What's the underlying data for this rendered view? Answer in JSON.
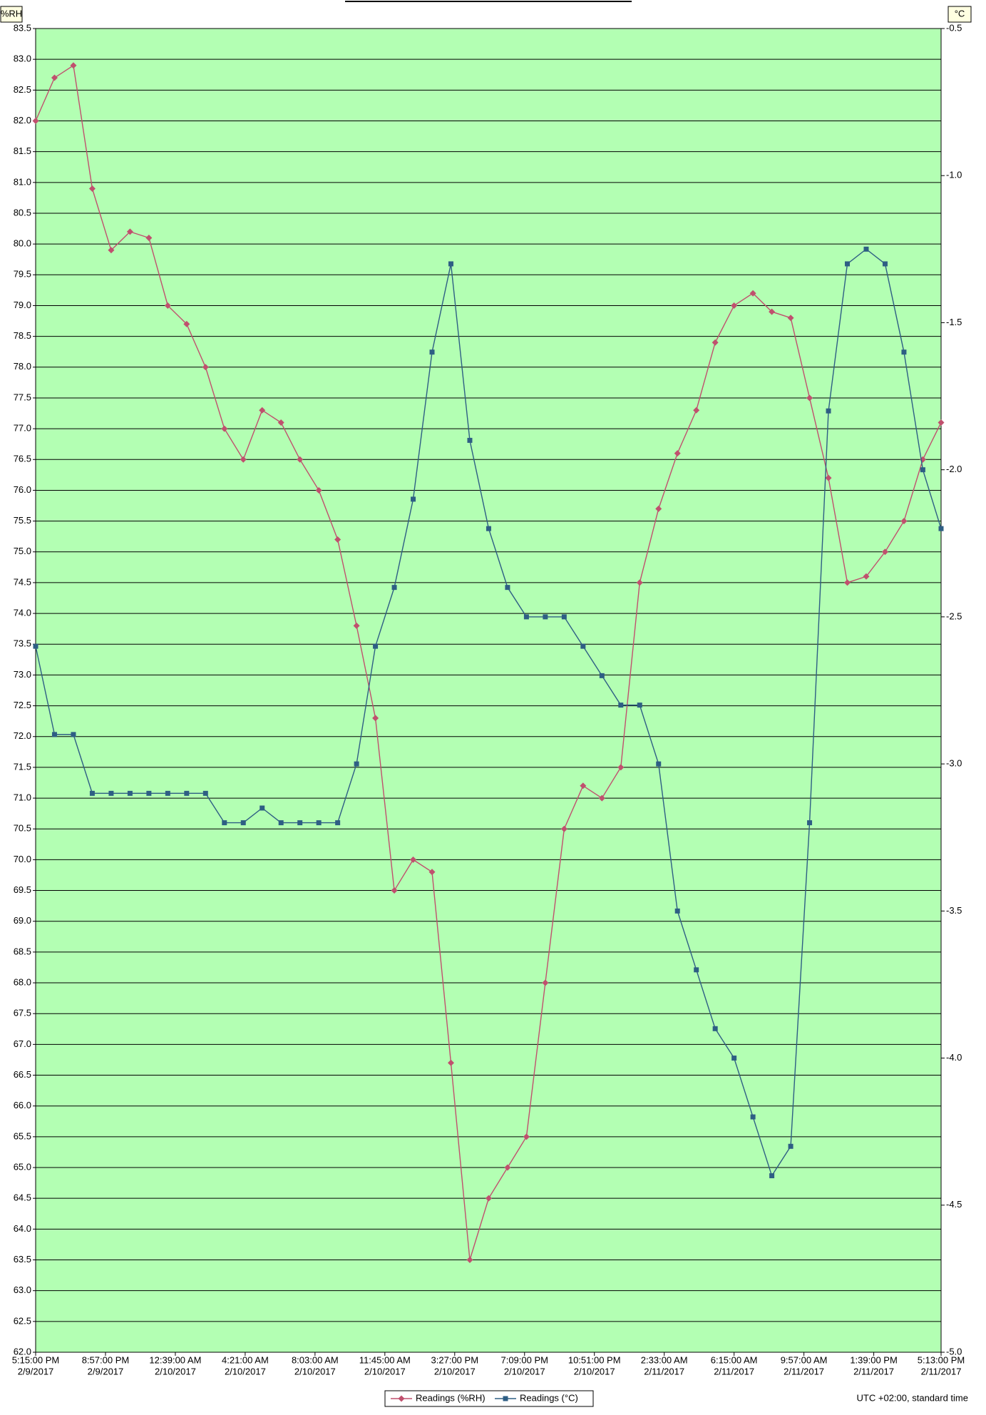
{
  "chart_data": {
    "type": "line",
    "y_label": "%RH",
    "y2_label": "°C",
    "footnote": "UTC +02:00, standard time",
    "grid": true,
    "background": "#b3ffb3",
    "x": [
      "2017-02-09T17:15",
      "2017-02-09T18:15",
      "2017-02-09T19:15",
      "2017-02-09T20:15",
      "2017-02-09T21:15",
      "2017-02-09T22:15",
      "2017-02-09T23:15",
      "2017-02-10T00:15",
      "2017-02-10T01:15",
      "2017-02-10T02:15",
      "2017-02-10T03:15",
      "2017-02-10T04:15",
      "2017-02-10T05:15",
      "2017-02-10T06:15",
      "2017-02-10T07:15",
      "2017-02-10T08:15",
      "2017-02-10T09:15",
      "2017-02-10T10:15",
      "2017-02-10T11:15",
      "2017-02-10T12:15",
      "2017-02-10T13:15",
      "2017-02-10T14:15",
      "2017-02-10T15:15",
      "2017-02-10T16:15",
      "2017-02-10T17:15",
      "2017-02-10T18:15",
      "2017-02-10T19:15",
      "2017-02-10T20:15",
      "2017-02-10T21:15",
      "2017-02-10T22:15",
      "2017-02-10T23:15",
      "2017-02-11T00:15",
      "2017-02-11T01:15",
      "2017-02-11T02:15",
      "2017-02-11T03:15",
      "2017-02-11T04:15",
      "2017-02-11T05:15",
      "2017-02-11T06:15",
      "2017-02-11T07:15",
      "2017-02-11T08:15",
      "2017-02-11T09:15",
      "2017-02-11T10:15",
      "2017-02-11T11:15",
      "2017-02-11T12:15",
      "2017-02-11T13:15",
      "2017-02-11T14:15",
      "2017-02-11T15:15",
      "2017-02-11T16:15",
      "2017-02-11T17:13"
    ],
    "series": [
      {
        "name": "Readings (%RH)",
        "color": "#c0506e",
        "marker": "diamond",
        "axis": "y",
        "values": [
          82.0,
          82.7,
          82.9,
          80.9,
          79.9,
          80.2,
          80.1,
          79.0,
          78.7,
          78.0,
          77.0,
          76.5,
          77.3,
          77.1,
          76.5,
          76.0,
          75.2,
          73.8,
          72.3,
          69.5,
          70.0,
          69.8,
          66.7,
          63.5,
          64.5,
          65.0,
          65.5,
          68.0,
          70.5,
          71.2,
          71.0,
          71.5,
          74.5,
          75.7,
          76.6,
          77.3,
          78.4,
          79.0,
          79.2,
          78.9,
          78.8,
          77.5,
          76.2,
          74.5,
          74.6,
          75.0,
          75.5,
          76.5,
          77.1
        ]
      },
      {
        "name": "Readings (°C)",
        "color": "#2e5e84",
        "marker": "square",
        "axis": "y2",
        "values": [
          -2.6,
          -2.9,
          -2.9,
          -3.1,
          -3.1,
          -3.1,
          -3.1,
          -3.1,
          -3.1,
          -3.1,
          -3.2,
          -3.2,
          -3.15,
          -3.2,
          -3.2,
          -3.2,
          -3.2,
          -3.0,
          -2.6,
          -2.4,
          -2.1,
          -1.6,
          -1.3,
          -1.9,
          -2.2,
          -2.4,
          -2.5,
          -2.5,
          -2.5,
          -2.6,
          -2.7,
          -2.8,
          -2.8,
          -3.0,
          -3.5,
          -3.7,
          -3.9,
          -4.0,
          -4.2,
          -4.4,
          -4.3,
          -3.2,
          -1.8,
          -1.3,
          -1.25,
          -1.3,
          -1.6,
          -2.0,
          -2.2
        ]
      }
    ],
    "xlim": [
      "2017-02-09T17:15",
      "2017-02-11T17:13"
    ],
    "xticks": [
      {
        "value": "2017-02-09T17:15",
        "label": [
          "5:15:00 PM",
          "2/9/2017"
        ]
      },
      {
        "value": "2017-02-09T20:57",
        "label": [
          "8:57:00 PM",
          "2/9/2017"
        ]
      },
      {
        "value": "2017-02-10T00:39",
        "label": [
          "12:39:00 AM",
          "2/10/2017"
        ]
      },
      {
        "value": "2017-02-10T04:21",
        "label": [
          "4:21:00 AM",
          "2/10/2017"
        ]
      },
      {
        "value": "2017-02-10T08:03",
        "label": [
          "8:03:00 AM",
          "2/10/2017"
        ]
      },
      {
        "value": "2017-02-10T11:45",
        "label": [
          "11:45:00 AM",
          "2/10/2017"
        ]
      },
      {
        "value": "2017-02-10T15:27",
        "label": [
          "3:27:00 PM",
          "2/10/2017"
        ]
      },
      {
        "value": "2017-02-10T19:09",
        "label": [
          "7:09:00 PM",
          "2/10/2017"
        ]
      },
      {
        "value": "2017-02-10T22:51",
        "label": [
          "10:51:00 PM",
          "2/10/2017"
        ]
      },
      {
        "value": "2017-02-11T02:33",
        "label": [
          "2:33:00 AM",
          "2/11/2017"
        ]
      },
      {
        "value": "2017-02-11T06:15",
        "label": [
          "6:15:00 AM",
          "2/11/2017"
        ]
      },
      {
        "value": "2017-02-11T09:57",
        "label": [
          "9:57:00 AM",
          "2/11/2017"
        ]
      },
      {
        "value": "2017-02-11T13:39",
        "label": [
          "1:39:00 PM",
          "2/11/2017"
        ]
      },
      {
        "value": "2017-02-11T17:13",
        "label": [
          "5:13:00 PM",
          "2/11/2017"
        ]
      }
    ],
    "ylim": [
      62,
      83.5
    ],
    "yticks": [
      {
        "value": 62,
        "label": "62.0"
      },
      62.5,
      {
        "value": 63,
        "label": "63.0"
      },
      63.5,
      {
        "value": 64,
        "label": "64.0"
      },
      64.5,
      {
        "value": 65,
        "label": "65.0"
      },
      65.5,
      {
        "value": 66,
        "label": "66.0"
      },
      66.5,
      {
        "value": 67,
        "label": "67.0"
      },
      67.5,
      {
        "value": 68,
        "label": "68.0"
      },
      68.5,
      {
        "value": 69,
        "label": "69.0"
      },
      69.5,
      {
        "value": 70,
        "label": "70.0"
      },
      70.5,
      {
        "value": 71,
        "label": "71.0"
      },
      71.5,
      {
        "value": 72,
        "label": "72.0"
      },
      72.5,
      {
        "value": 73,
        "label": "73.0"
      },
      73.5,
      {
        "value": 74,
        "label": "74.0"
      },
      74.5,
      {
        "value": 75,
        "label": "75.0"
      },
      75.5,
      {
        "value": 76,
        "label": "76.0"
      },
      76.5,
      {
        "value": 77,
        "label": "77.0"
      },
      77.5,
      {
        "value": 78,
        "label": "78.0"
      },
      78.5,
      {
        "value": 79,
        "label": "79.0"
      },
      79.5,
      {
        "value": 80,
        "label": "80.0"
      },
      80.5,
      {
        "value": 81,
        "label": "81.0"
      },
      81.5,
      {
        "value": 82,
        "label": "82.0"
      },
      82.5,
      {
        "value": 83,
        "label": "83.0"
      },
      83.5
    ],
    "y2lim": [
      -5,
      -0.5
    ],
    "y2ticks": [
      -0.5,
      {
        "value": -1,
        "label": "-1.0"
      },
      -1.5,
      {
        "value": -2,
        "label": "-2.0"
      },
      -2.5,
      {
        "value": -3,
        "label": "-3.0"
      },
      -3.5,
      {
        "value": -4,
        "label": "-4.0"
      },
      -4.5,
      {
        "value": -5,
        "label": "-5.0"
      }
    ]
  }
}
